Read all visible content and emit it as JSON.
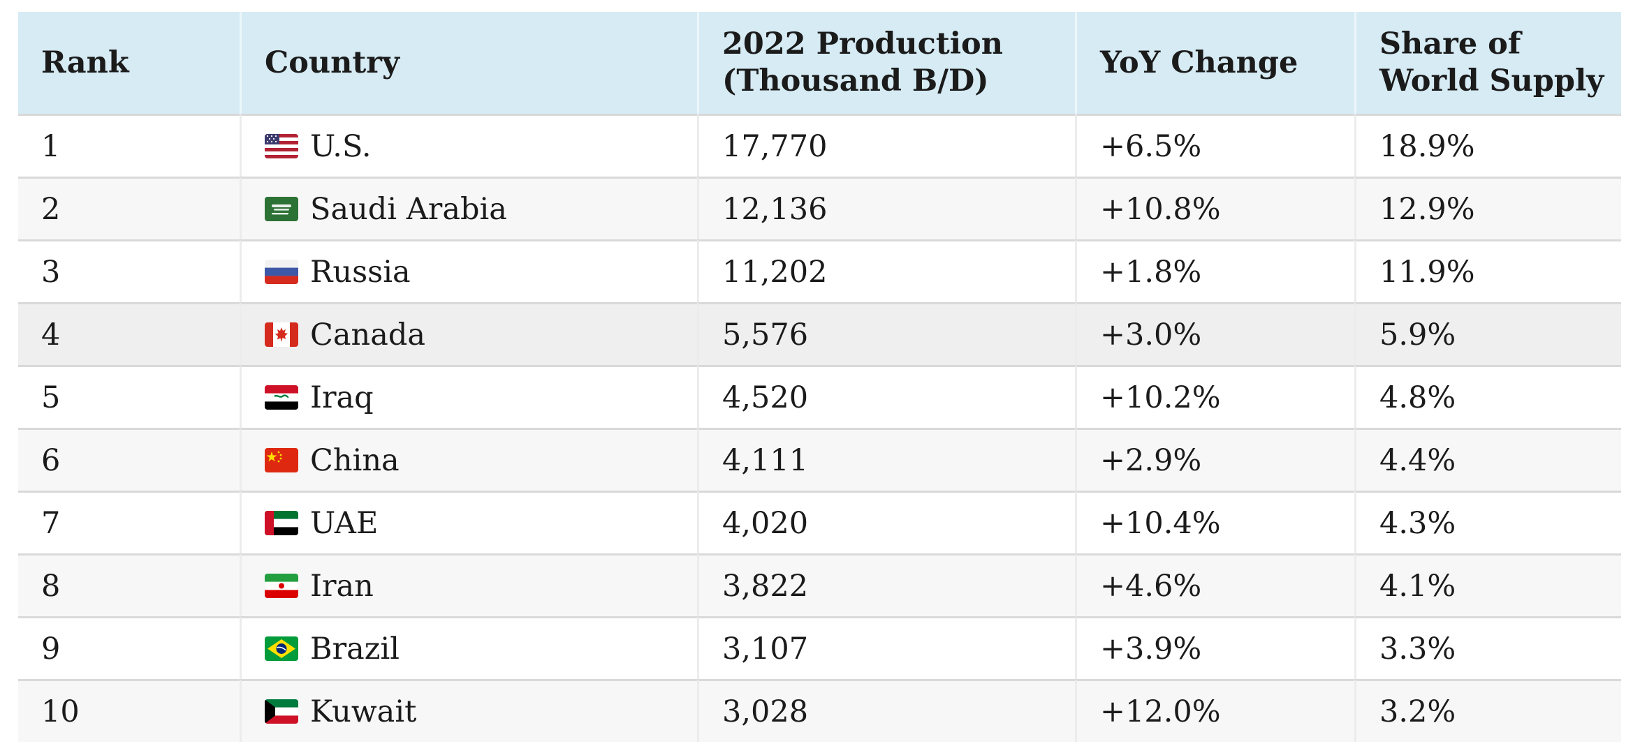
{
  "table": {
    "columns": [
      {
        "id": "rank",
        "label": "Rank"
      },
      {
        "id": "country",
        "label": "Country"
      },
      {
        "id": "production",
        "label": "2022 Production\n(Thousand B/D)"
      },
      {
        "id": "yoy",
        "label": "YoY Change"
      },
      {
        "id": "share",
        "label": "Share of\nWorld Supply"
      }
    ],
    "rows": [
      {
        "rank": "1",
        "flag": "us",
        "country": "U.S.",
        "production": "17,770",
        "yoy": "+6.5%",
        "share": "18.9%",
        "highlighted": false
      },
      {
        "rank": "2",
        "flag": "sa",
        "country": "Saudi Arabia",
        "production": "12,136",
        "yoy": "+10.8%",
        "share": "12.9%",
        "highlighted": false
      },
      {
        "rank": "3",
        "flag": "ru",
        "country": "Russia",
        "production": "11,202",
        "yoy": "+1.8%",
        "share": "11.9%",
        "highlighted": false
      },
      {
        "rank": "4",
        "flag": "ca",
        "country": "Canada",
        "production": "5,576",
        "yoy": "+3.0%",
        "share": "5.9%",
        "highlighted": true
      },
      {
        "rank": "5",
        "flag": "iq",
        "country": "Iraq",
        "production": "4,520",
        "yoy": "+10.2%",
        "share": "4.8%",
        "highlighted": false
      },
      {
        "rank": "6",
        "flag": "cn",
        "country": "China",
        "production": "4,111",
        "yoy": "+2.9%",
        "share": "4.4%",
        "highlighted": false
      },
      {
        "rank": "7",
        "flag": "ae",
        "country": "UAE",
        "production": "4,020",
        "yoy": "+10.4%",
        "share": "4.3%",
        "highlighted": false
      },
      {
        "rank": "8",
        "flag": "ir",
        "country": "Iran",
        "production": "3,822",
        "yoy": "+4.6%",
        "share": "4.1%",
        "highlighted": false
      },
      {
        "rank": "9",
        "flag": "br",
        "country": "Brazil",
        "production": "3,107",
        "yoy": "+3.9%",
        "share": "3.3%",
        "highlighted": false
      },
      {
        "rank": "10",
        "flag": "kw",
        "country": "Kuwait",
        "production": "3,028",
        "yoy": "+12.0%",
        "share": "3.2%",
        "highlighted": false
      }
    ]
  },
  "colors": {
    "header_bg": "#d6ebf4",
    "row_alt": "#f7f7f7",
    "row_highlight": "#efefef",
    "border": "#d9d9d9",
    "text": "#1b1b1b"
  }
}
